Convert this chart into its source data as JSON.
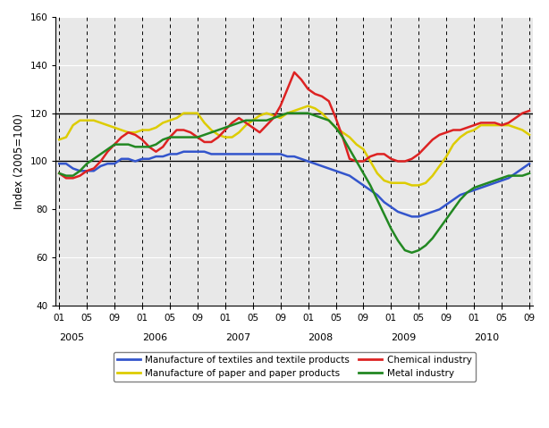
{
  "title": "",
  "ylabel": "Index (2005=100)",
  "ylim": [
    40,
    160
  ],
  "yticks": [
    40,
    60,
    80,
    100,
    120,
    140,
    160
  ],
  "hlines": [
    100,
    120
  ],
  "background_color": "#ffffff",
  "plot_background": "#f0f0f0",
  "grid_color": "#ffffff",
  "line_colors": {
    "textiles": "#3355cc",
    "paper": "#ddcc00",
    "chemical": "#dd2222",
    "metal": "#228822"
  },
  "legend_labels": {
    "textiles": "Manufacture of textiles and textile products",
    "paper": "Manufacture of paper and paper products",
    "chemical": "Chemical industry",
    "metal": "Metal industry"
  },
  "textiles": [
    99,
    99,
    97,
    96,
    96,
    96,
    98,
    99,
    99,
    101,
    101,
    100,
    101,
    101,
    102,
    102,
    103,
    103,
    104,
    104,
    104,
    104,
    103,
    103,
    103,
    103,
    103,
    103,
    103,
    103,
    103,
    103,
    103,
    102,
    102,
    101,
    100,
    99,
    98,
    97,
    96,
    95,
    94,
    92,
    90,
    88,
    86,
    83,
    81,
    79,
    78,
    77,
    77,
    78,
    79,
    80,
    82,
    84,
    86,
    87,
    88,
    89,
    90,
    91,
    92,
    93,
    95,
    97,
    99
  ],
  "paper": [
    109,
    110,
    115,
    117,
    117,
    117,
    116,
    115,
    114,
    113,
    112,
    112,
    113,
    113,
    114,
    116,
    117,
    118,
    120,
    120,
    120,
    116,
    113,
    111,
    110,
    110,
    112,
    115,
    117,
    119,
    120,
    119,
    118,
    120,
    121,
    122,
    123,
    122,
    120,
    117,
    114,
    112,
    110,
    107,
    105,
    100,
    95,
    92,
    91,
    91,
    91,
    90,
    90,
    91,
    94,
    98,
    102,
    107,
    110,
    112,
    113,
    115,
    115,
    115,
    115,
    115,
    114,
    113,
    111
  ],
  "chemical": [
    95,
    93,
    93,
    94,
    96,
    97,
    100,
    104,
    107,
    110,
    112,
    111,
    109,
    106,
    104,
    106,
    110,
    113,
    113,
    112,
    110,
    108,
    108,
    110,
    113,
    116,
    118,
    116,
    114,
    112,
    115,
    118,
    123,
    130,
    137,
    134,
    130,
    128,
    127,
    125,
    118,
    110,
    101,
    100,
    100,
    102,
    103,
    103,
    101,
    100,
    100,
    101,
    103,
    106,
    109,
    111,
    112,
    113,
    113,
    114,
    115,
    116,
    116,
    116,
    115,
    116,
    118,
    120,
    121
  ],
  "metal": [
    95,
    94,
    94,
    96,
    99,
    101,
    103,
    105,
    107,
    107,
    107,
    106,
    106,
    106,
    107,
    109,
    110,
    110,
    110,
    110,
    110,
    111,
    112,
    113,
    114,
    115,
    116,
    117,
    117,
    117,
    117,
    118,
    119,
    120,
    120,
    120,
    120,
    119,
    118,
    117,
    114,
    110,
    105,
    100,
    95,
    90,
    84,
    78,
    72,
    67,
    63,
    62,
    63,
    65,
    68,
    72,
    76,
    80,
    84,
    87,
    89,
    90,
    91,
    92,
    93,
    94,
    94,
    94,
    95
  ],
  "dashed_vlines_positions": [
    0,
    4,
    8,
    12,
    16,
    20,
    24,
    28,
    32,
    36,
    40,
    44,
    48,
    52,
    56,
    60,
    64,
    68
  ],
  "solid_hlines": [
    100,
    120
  ],
  "n_points": 69,
  "start_year": 2005,
  "start_month": 1
}
